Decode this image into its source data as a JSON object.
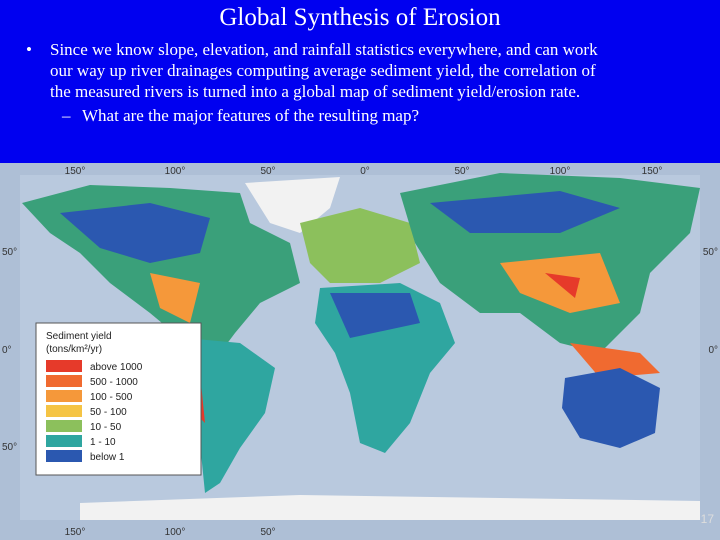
{
  "slide": {
    "title": "Global Synthesis of Erosion",
    "bullet": {
      "marker": "•",
      "lines": [
        "Since we know slope, elevation, and rainfall statistics everywhere, and can work",
        "our way up river drainages computing average sediment yield, the correlation of",
        "the measured rivers is turned into a global map of sediment yield/erosion rate."
      ]
    },
    "sub_bullet": {
      "marker": "–",
      "text": "What are the major features of the resulting map?"
    },
    "map": {
      "top_labels": [
        "150°",
        "100°",
        "50°",
        "0°",
        "50°",
        "100°",
        "150°"
      ],
      "left_labels": [
        "50°",
        "0°",
        "50°"
      ],
      "right_labels": [
        "50°",
        "0°"
      ],
      "bottom_labels": [
        "150°",
        "100°",
        "50°"
      ],
      "legend": {
        "title": "Sediment yield",
        "unit": "(tons/km²/yr)",
        "items": [
          {
            "label": "above 1000",
            "color": "#e63a2a"
          },
          {
            "label": "500 - 1000",
            "color": "#f06a30"
          },
          {
            "label": "100 - 500",
            "color": "#f5983a"
          },
          {
            "label": "50 - 100",
            "color": "#f5c444"
          },
          {
            "label": "10 - 50",
            "color": "#8cc05c"
          },
          {
            "label": "1 - 10",
            "color": "#2fa6a0"
          },
          {
            "label": "below 1",
            "color": "#2b58b0"
          }
        ]
      }
    },
    "page_number": "17"
  }
}
